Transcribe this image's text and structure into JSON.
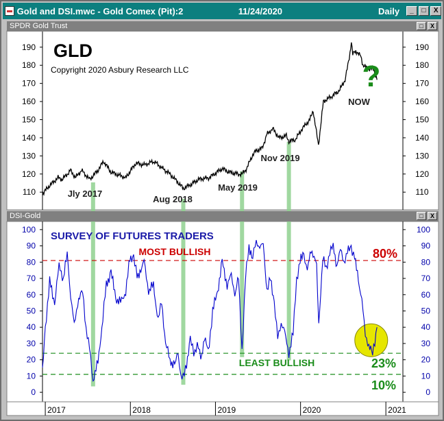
{
  "window": {
    "title": "Gold and DSI.mwc - Gold Comex (Pit):2",
    "date": "11/24/2020",
    "mode": "Daily",
    "buttons": [
      "_",
      "□",
      "X"
    ]
  },
  "top_pane": {
    "title": "SPDR Gold Trust",
    "buttons": [
      "□",
      "X"
    ]
  },
  "bottom_pane": {
    "title": "DSI-Gold",
    "buttons": [
      "□",
      "X"
    ]
  },
  "colors": {
    "price": "#000000",
    "dsi": "#0000cc",
    "bullish": "#cc0000",
    "bearish": "#1a8c1a",
    "highlight": "#8fd18f",
    "circle": "#e6e600"
  },
  "chart_data": [
    {
      "type": "line",
      "title": "GLD",
      "subtitle": "Copyright 2020 Asbury Research LLC",
      "ylim": [
        101,
        199
      ],
      "yticks": [
        110,
        120,
        130,
        140,
        150,
        160,
        170,
        180,
        190
      ],
      "series": [
        {
          "x": [
            "2016-12-20",
            "2017-01-15",
            "2017-02-25",
            "2017-03-15",
            "2017-04-20",
            "2017-05-10",
            "2017-06-06",
            "2017-07-10",
            "2017-08-15",
            "2017-09-08",
            "2017-10-10",
            "2017-12-12",
            "2018-01-25",
            "2018-03-01",
            "2018-04-12",
            "2018-05-20",
            "2018-06-20",
            "2018-07-20",
            "2018-08-16",
            "2018-09-15",
            "2018-10-20",
            "2018-12-05",
            "2019-01-30",
            "2019-03-01",
            "2019-04-10",
            "2019-04-25",
            "2019-05-15",
            "2019-06-07",
            "2019-06-25",
            "2019-07-20",
            "2019-08-10",
            "2019-09-04",
            "2019-10-01",
            "2019-11-01",
            "2019-11-12",
            "2019-12-10",
            "2020-01-08",
            "2020-02-10",
            "2020-02-24",
            "2020-03-09",
            "2020-03-18",
            "2020-04-08",
            "2020-05-15",
            "2020-06-15",
            "2020-07-10",
            "2020-07-28",
            "2020-08-06",
            "2020-08-12",
            "2020-08-25",
            "2020-09-15",
            "2020-09-25",
            "2020-10-20",
            "2020-11-09",
            "2020-11-24"
          ],
          "values": [
            109,
            113,
            118,
            117,
            122,
            118,
            122,
            117,
            122,
            127,
            121,
            118,
            126,
            125,
            127,
            123,
            120,
            116,
            112,
            114,
            117,
            118,
            123,
            121,
            120,
            120,
            123,
            130,
            133,
            134,
            142,
            145,
            140,
            141,
            138,
            139,
            145,
            150,
            155,
            143,
            136,
            160,
            163,
            166,
            172,
            184,
            193,
            186,
            188,
            185,
            180,
            178,
            178,
            172
          ]
        }
      ],
      "annotations": [
        "Jly 2017",
        "Aug 2018",
        "May 2019",
        "Nov 2019",
        "NOW",
        "?"
      ]
    },
    {
      "type": "line",
      "title": "SURVEY OF FUTURES TRADERS",
      "ylim": [
        -5,
        105
      ],
      "yticks": [
        0,
        10,
        20,
        30,
        40,
        50,
        60,
        70,
        80,
        90,
        100
      ],
      "xticks": [
        "2017",
        "2018",
        "2019",
        "2020",
        "2021"
      ],
      "reference_lines": [
        {
          "value": 81,
          "label": "MOST BULLISH",
          "pct_label": "80%"
        },
        {
          "value": 24,
          "label": "LEAST BULLISH",
          "pct_label": "23%"
        },
        {
          "value": 11,
          "pct_label": "10%"
        }
      ],
      "series": [
        {
          "x": [
            "2016-12-20",
            "2017-01-01",
            "2017-01-20",
            "2017-02-10",
            "2017-03-01",
            "2017-03-20",
            "2017-04-05",
            "2017-04-20",
            "2017-05-05",
            "2017-05-20",
            "2017-06-10",
            "2017-06-25",
            "2017-07-10",
            "2017-07-25",
            "2017-08-15",
            "2017-09-05",
            "2017-09-20",
            "2017-10-10",
            "2017-10-30",
            "2017-11-20",
            "2017-12-12",
            "2017-12-30",
            "2018-01-15",
            "2018-01-30",
            "2018-02-15",
            "2018-03-01",
            "2018-03-20",
            "2018-04-10",
            "2018-04-30",
            "2018-05-15",
            "2018-06-01",
            "2018-06-20",
            "2018-07-10",
            "2018-07-25",
            "2018-08-05",
            "2018-08-16",
            "2018-08-30",
            "2018-09-15",
            "2018-09-30",
            "2018-10-15",
            "2018-10-30",
            "2018-11-15",
            "2018-12-01",
            "2018-12-20",
            "2019-01-10",
            "2019-01-30",
            "2019-02-20",
            "2019-03-10",
            "2019-03-25",
            "2019-04-10",
            "2019-04-25",
            "2019-05-10",
            "2019-05-25",
            "2019-06-10",
            "2019-06-25",
            "2019-07-10",
            "2019-07-25",
            "2019-08-10",
            "2019-08-25",
            "2019-09-10",
            "2019-09-25",
            "2019-10-10",
            "2019-10-25",
            "2019-11-12",
            "2019-11-30",
            "2019-12-15",
            "2019-12-30",
            "2020-01-15",
            "2020-01-30",
            "2020-02-15",
            "2020-02-28",
            "2020-03-10",
            "2020-03-19",
            "2020-04-05",
            "2020-04-20",
            "2020-05-05",
            "2020-05-20",
            "2020-06-05",
            "2020-06-20",
            "2020-07-05",
            "2020-07-20",
            "2020-08-05",
            "2020-08-20",
            "2020-09-05",
            "2020-09-20",
            "2020-10-05",
            "2020-10-20",
            "2020-11-05",
            "2020-11-24"
          ],
          "values": [
            12,
            40,
            68,
            55,
            78,
            70,
            85,
            60,
            40,
            56,
            62,
            40,
            26,
            8,
            18,
            46,
            66,
            74,
            58,
            55,
            62,
            82,
            84,
            70,
            76,
            80,
            62,
            66,
            44,
            56,
            30,
            20,
            16,
            24,
            10,
            8,
            18,
            32,
            24,
            30,
            20,
            34,
            24,
            50,
            62,
            80,
            66,
            72,
            60,
            70,
            26,
            70,
            90,
            82,
            94,
            88,
            92,
            62,
            70,
            56,
            32,
            44,
            36,
            24,
            36,
            70,
            80,
            86,
            74,
            88,
            84,
            76,
            42,
            82,
            76,
            86,
            90,
            78,
            88,
            80,
            86,
            90,
            82,
            70,
            56,
            36,
            28,
            24,
            40
          ]
        }
      ]
    }
  ]
}
